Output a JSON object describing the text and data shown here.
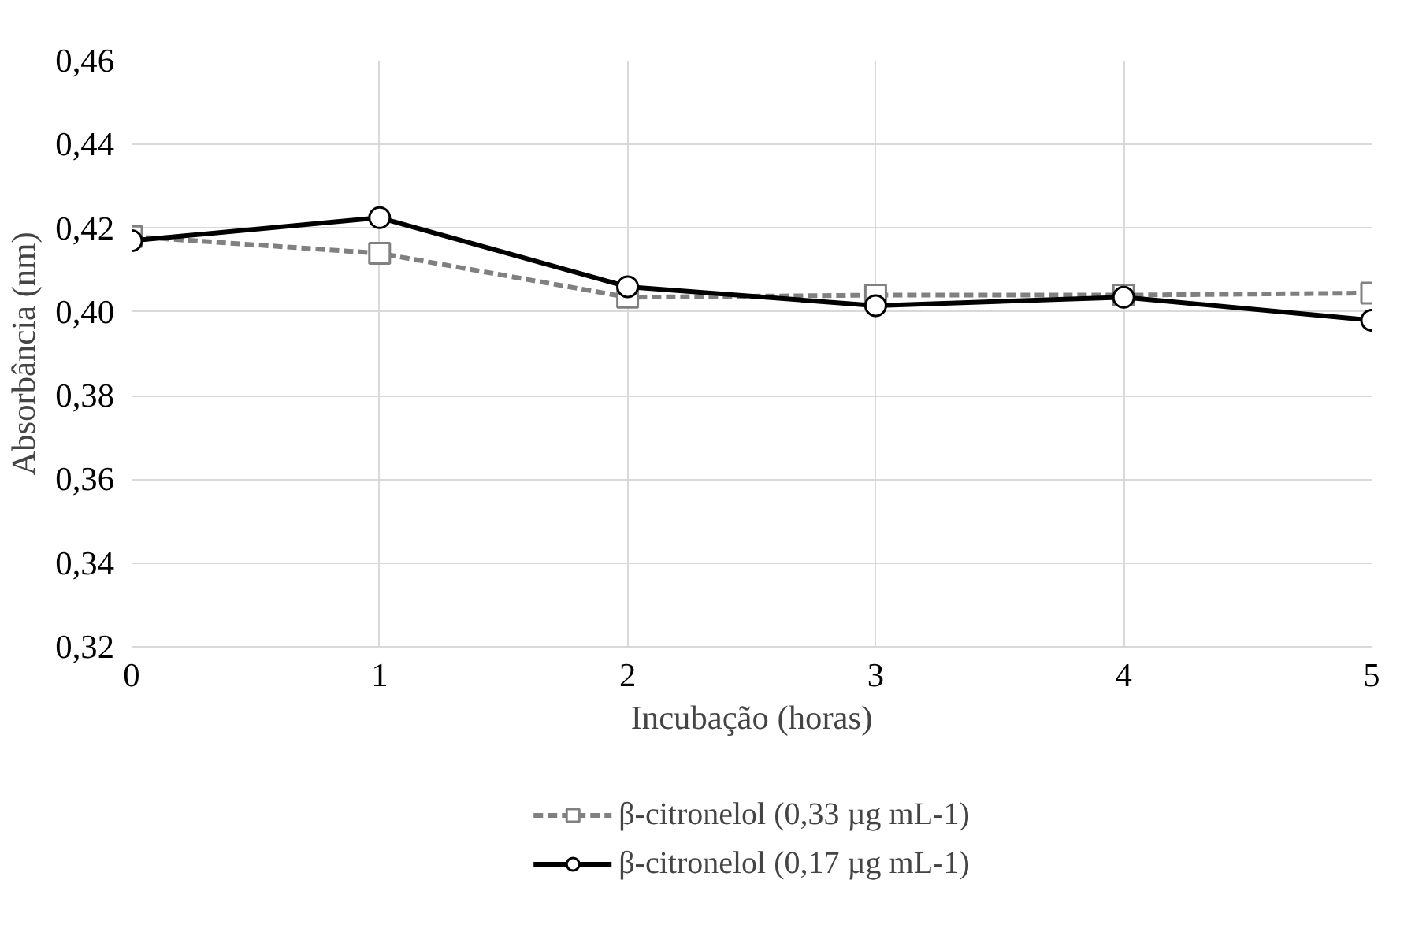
{
  "chart_data": {
    "type": "line",
    "xlabel": "Incubação (horas)",
    "ylabel": "Absorbância (nm)",
    "x": [
      0,
      1,
      2,
      3,
      4,
      5
    ],
    "series": [
      {
        "name": "β-citronelol (0,33 µg mL-1)",
        "color": "#808080",
        "marker": "square",
        "line_style": "dashed",
        "values": [
          0.418,
          0.414,
          0.4035,
          0.404,
          0.404,
          0.4045
        ]
      },
      {
        "name": "β-citronelol (0,17 µg mL-1)",
        "color": "#000000",
        "marker": "circle",
        "line_style": "solid",
        "values": [
          0.417,
          0.4225,
          0.406,
          0.4015,
          0.4035,
          0.398
        ]
      }
    ],
    "xlim": [
      0,
      5
    ],
    "xticks": [
      0,
      1,
      2,
      3,
      4,
      5
    ],
    "ylim": [
      0.32,
      0.46
    ],
    "yticks": [
      {
        "value": 0.32,
        "label": "0,32"
      },
      {
        "value": 0.34,
        "label": "0,34"
      },
      {
        "value": 0.36,
        "label": "0,36"
      },
      {
        "value": 0.38,
        "label": "0,38"
      },
      {
        "value": 0.4,
        "label": "0,40"
      },
      {
        "value": 0.42,
        "label": "0,42"
      },
      {
        "value": 0.44,
        "label": "0,44"
      },
      {
        "value": 0.46,
        "label": "0,46"
      }
    ],
    "grid": true,
    "legend": "bottom"
  }
}
